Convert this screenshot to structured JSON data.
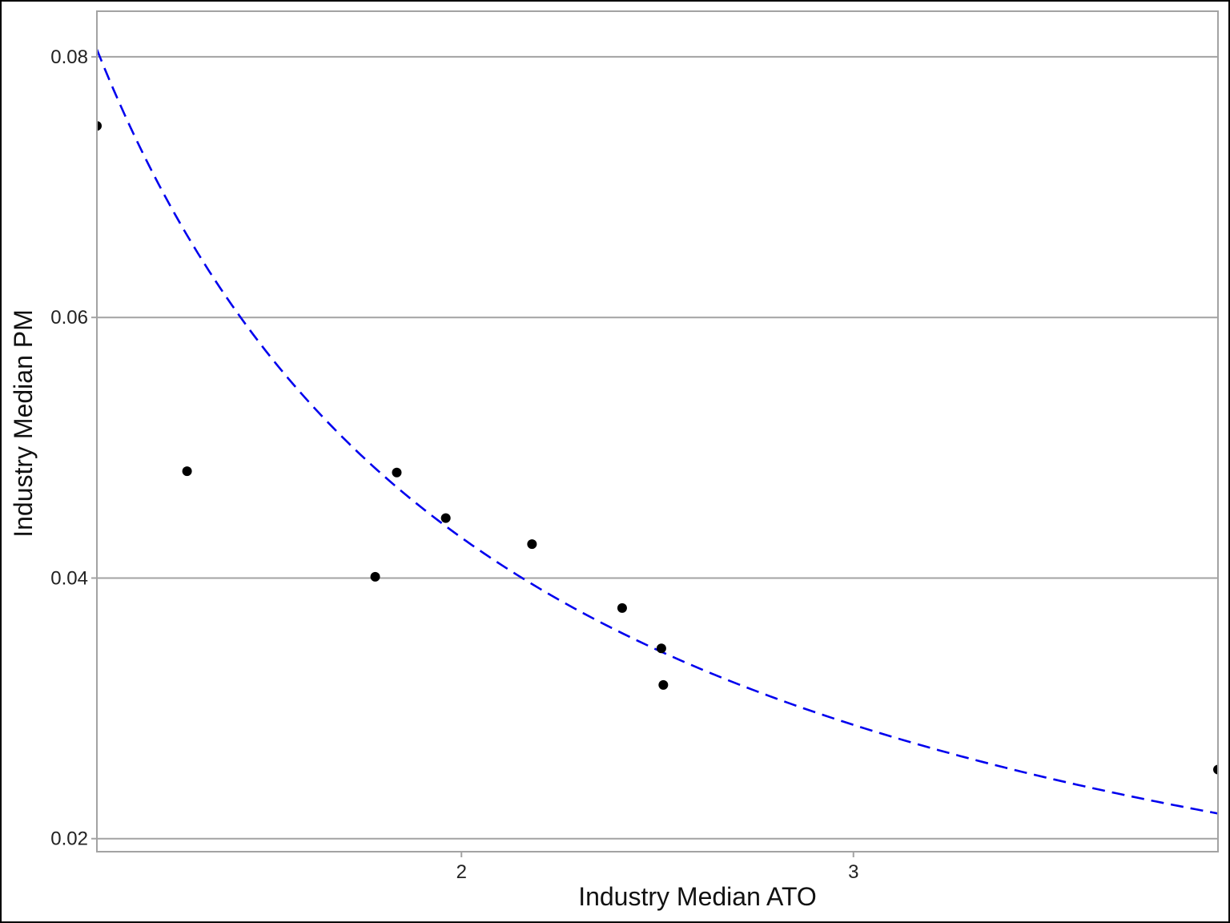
{
  "chart_data": {
    "type": "scatter",
    "xlabel": "Industry Median ATO",
    "ylabel": "Industry Median PM",
    "xlim": [
      1.07,
      3.93
    ],
    "ylim": [
      0.019,
      0.0835
    ],
    "x_ticks": [
      2,
      3
    ],
    "y_ticks": [
      0.02,
      0.04,
      0.06,
      0.08
    ],
    "x_tick_labels": [
      "2",
      "3"
    ],
    "y_tick_labels": [
      "0.02",
      "0.04",
      "0.06",
      "0.08"
    ],
    "grid": "horizontal major lines only",
    "legend": "none",
    "colors": {
      "points": "#000000",
      "fit_line": "#0000ee",
      "grid": "#a3a3a3"
    },
    "series": [
      {
        "type": "scatter",
        "x": [
          1.07,
          1.3,
          1.78,
          1.835,
          1.96,
          2.18,
          2.41,
          2.51,
          2.515,
          3.93
        ],
        "y": [
          0.0747,
          0.0482,
          0.0401,
          0.0481,
          0.0446,
          0.0426,
          0.0377,
          0.0346,
          0.0318,
          0.0253
        ]
      },
      {
        "type": "line",
        "style": "dashed",
        "function": "y = 0.0862 / x",
        "x": [
          1.07,
          1.2,
          1.4,
          1.6,
          1.8,
          2.0,
          2.2,
          2.4,
          2.6,
          2.8,
          3.0,
          3.2,
          3.4,
          3.6,
          3.8,
          3.93
        ],
        "y": [
          0.08056,
          0.07183,
          0.06157,
          0.05388,
          0.04789,
          0.0431,
          0.03918,
          0.03592,
          0.03315,
          0.03079,
          0.02873,
          0.02694,
          0.02535,
          0.02394,
          0.02268,
          0.02193
        ]
      }
    ]
  }
}
